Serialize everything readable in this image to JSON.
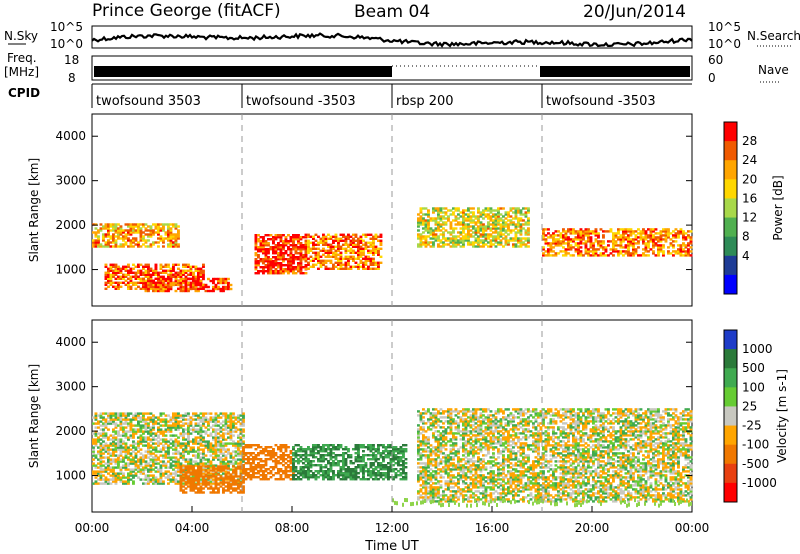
{
  "header": {
    "station": "Prince George (fitACF)",
    "beam": "Beam 04",
    "date": "20/Jun/2014"
  },
  "labels": {
    "nsky": "N.Sky",
    "freq_line1": "Freq.",
    "freq_line2": "[MHz]",
    "cpid": "CPID",
    "nsearch": "N.Search",
    "nave": "Nave"
  },
  "noise_panel": {
    "left_ticks": [
      "10^5",
      "10^0"
    ],
    "right_ticks": [
      "10^5",
      "10^0"
    ]
  },
  "freq_panel": {
    "left_ticks": [
      "18",
      "8"
    ],
    "right_ticks": [
      "60",
      "0"
    ]
  },
  "cpid_segments": [
    {
      "label": "twofsound 3503",
      "start_hour": 0
    },
    {
      "label": "twofsound -3503",
      "start_hour": 6
    },
    {
      "label": "rbsp 200",
      "start_hour": 12
    },
    {
      "label": "twofsound -3503",
      "start_hour": 18
    }
  ],
  "power_colorbar": {
    "title": "Power [dB]",
    "ticks": [
      "28",
      "24",
      "20",
      "16",
      "12",
      "8",
      "4"
    ],
    "colors": [
      "#ff0000",
      "#f05a00",
      "#ffa500",
      "#ffd700",
      "#a8d84a",
      "#50b050",
      "#2e8b57",
      "#1e3c96",
      "#0000ff"
    ]
  },
  "velocity_colorbar": {
    "title": "Velocity [m s-1]",
    "ticks": [
      "1000",
      "500",
      "100",
      "25",
      "-25",
      "-100",
      "-500",
      "-1000"
    ],
    "colors": [
      "#1e3cc8",
      "#2b7a3a",
      "#3faa50",
      "#66cc33",
      "#c8c8c0",
      "#ffa500",
      "#f07800",
      "#e84010",
      "#ff0000"
    ]
  },
  "chart_data": [
    {
      "type": "heatmap",
      "title": "Power",
      "xlabel": "",
      "ylabel": "Slant Range [km]",
      "ylim": [
        180,
        4500
      ],
      "yticks": [
        1000,
        2000,
        3000,
        4000
      ],
      "xlim": [
        0,
        24
      ],
      "x_unit": "hours UT",
      "colorbar_label": "Power [dB]",
      "colorbar_range": [
        0,
        30
      ],
      "echo_bands": [
        {
          "start_h": 0.0,
          "end_h": 3.5,
          "range_km": [
            1500,
            2000
          ],
          "power_db": 22
        },
        {
          "start_h": 0.5,
          "end_h": 4.5,
          "range_km": [
            550,
            1100
          ],
          "power_db": 26
        },
        {
          "start_h": 2.0,
          "end_h": 5.5,
          "range_km": [
            500,
            800
          ],
          "power_db": 28
        },
        {
          "start_h": 6.5,
          "end_h": 8.5,
          "range_km": [
            900,
            1800
          ],
          "power_db": 29
        },
        {
          "start_h": 8.5,
          "end_h": 11.5,
          "range_km": [
            1000,
            1800
          ],
          "power_db": 25
        },
        {
          "start_h": 13.0,
          "end_h": 17.5,
          "range_km": [
            1500,
            2400
          ],
          "power_db": 18
        },
        {
          "start_h": 18.0,
          "end_h": 24.0,
          "range_km": [
            1300,
            1900
          ],
          "power_db": 24
        }
      ]
    },
    {
      "type": "heatmap",
      "title": "Velocity",
      "xlabel": "Time UT",
      "ylabel": "Slant Range [km]",
      "ylim": [
        180,
        4500
      ],
      "yticks": [
        1000,
        2000,
        3000,
        4000
      ],
      "xlim": [
        0,
        24
      ],
      "xticks": [
        "00:00",
        "04:00",
        "08:00",
        "12:00",
        "16:00",
        "20:00",
        "00:00"
      ],
      "colorbar_label": "Velocity [m s-1]",
      "colorbar_range": [
        -1000,
        1000
      ],
      "echo_bands": [
        {
          "start_h": 0.0,
          "end_h": 6.0,
          "range_km": [
            800,
            2400
          ],
          "velocity_ms": 0
        },
        {
          "start_h": 3.5,
          "end_h": 6.0,
          "range_km": [
            600,
            1200
          ],
          "velocity_ms": -300
        },
        {
          "start_h": 6.0,
          "end_h": 8.0,
          "range_km": [
            900,
            1700
          ],
          "velocity_ms": -400
        },
        {
          "start_h": 8.0,
          "end_h": 12.5,
          "range_km": [
            900,
            1700
          ],
          "velocity_ms": 300
        },
        {
          "start_h": 13.0,
          "end_h": 24.0,
          "range_km": [
            400,
            2500
          ],
          "velocity_ms": 0
        }
      ]
    }
  ]
}
